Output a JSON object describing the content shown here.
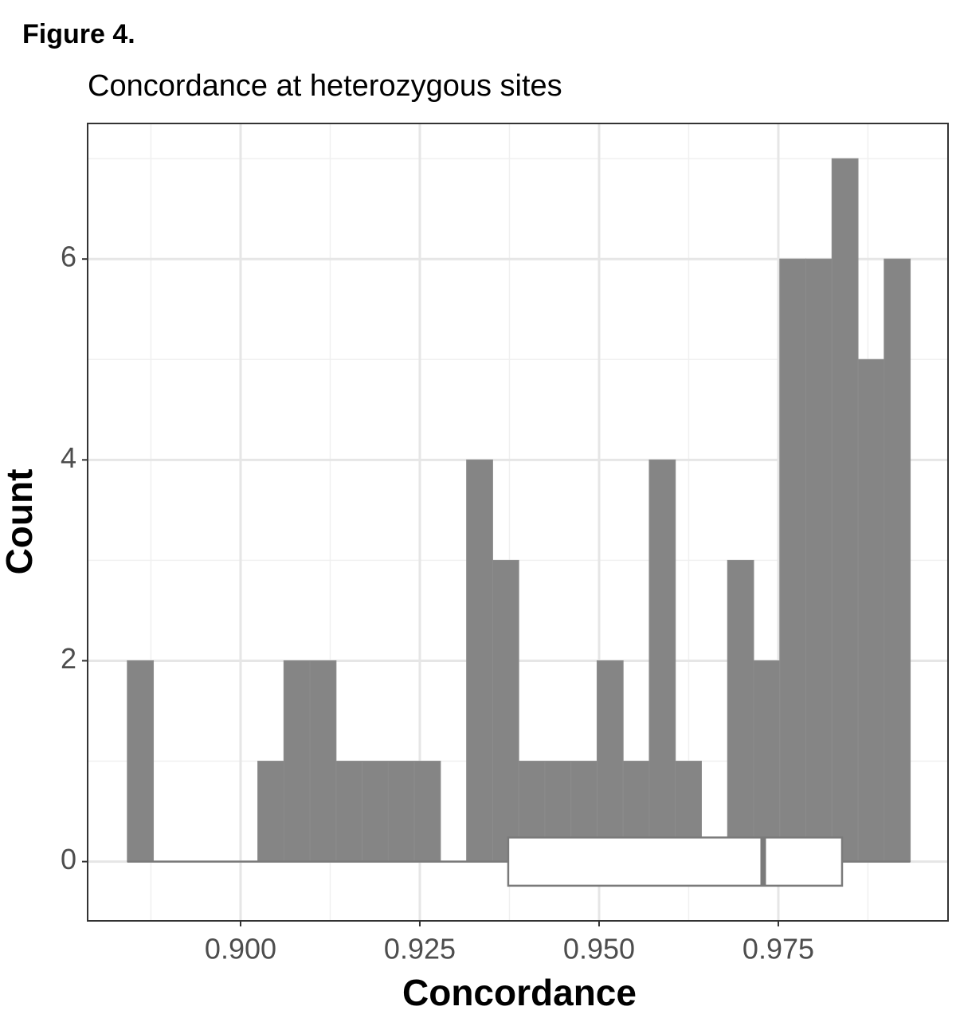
{
  "figure_label": "Figure 4.",
  "chart_data": {
    "type": "histogram",
    "title": "Concordance at heterozygous sites",
    "x_label": "Concordance",
    "y_label": "Count",
    "bins": [
      0.8842,
      0.88784,
      0.89148,
      0.89512,
      0.89876,
      0.9024,
      0.90604,
      0.90968,
      0.91332,
      0.91696,
      0.9206,
      0.92424,
      0.92788,
      0.93152,
      0.93516,
      0.9388,
      0.94244,
      0.94608,
      0.94972,
      0.95336,
      0.957,
      0.96064,
      0.96428,
      0.96792,
      0.97156,
      0.9752,
      0.97884,
      0.98248,
      0.98612,
      0.98976,
      0.9934
    ],
    "values": [
      2,
      0,
      0,
      0,
      0,
      1,
      2,
      2,
      1,
      1,
      1,
      1,
      0,
      4,
      3,
      1,
      1,
      1,
      2,
      1,
      4,
      1,
      0,
      3,
      2,
      6,
      6,
      7,
      5,
      6
    ],
    "color": "#858585",
    "boxplot": {
      "min": 0.8842,
      "q1": 0.93733,
      "median": 0.97289,
      "q3": 0.98389,
      "max": 0.9934
    },
    "xlim": [
      0.87867,
      0.99867
    ],
    "ylim": [
      -0.59,
      7.35
    ],
    "xticks": [
      {
        "value": 0.9,
        "label": "0.900"
      },
      0.925,
      {
        "value": 0.95,
        "label": "0.950"
      },
      0.975
    ],
    "xminor": [
      0.8875,
      0.9125,
      0.9375,
      0.9625,
      0.9875
    ],
    "yticks": [
      0,
      2,
      4,
      6
    ],
    "yminor": [
      1,
      3,
      5,
      7
    ],
    "grid": true
  }
}
